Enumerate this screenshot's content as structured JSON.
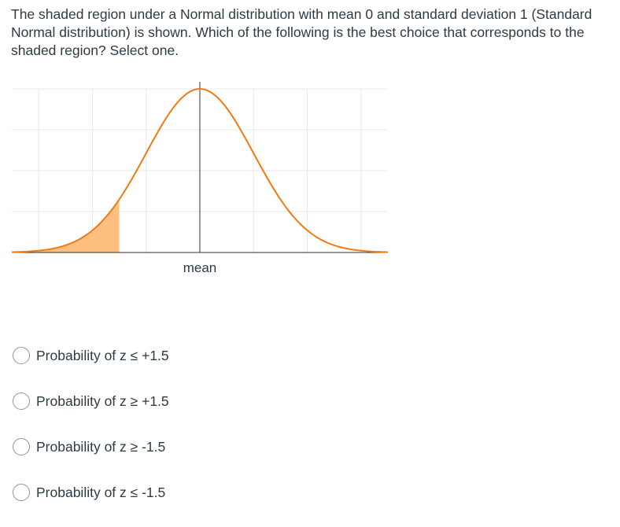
{
  "question": {
    "text": "The shaded region under a Normal distribution with mean 0 and standard deviation 1 (Standard Normal distribution) is shown. Which of the following is the best choice that corresponds to the shaded region? Select one."
  },
  "chart_data": {
    "type": "area",
    "distribution": "standard normal",
    "mean": 0,
    "sd": 1,
    "xlim": [
      -3.5,
      3.5
    ],
    "shaded_region": {
      "from": -3.5,
      "to": -1.5
    },
    "x_label": "mean",
    "grid": true,
    "colors": {
      "curve": "#f07b12",
      "fill": "#ffbf80",
      "grid": "#e8e8e8",
      "axis": "#333333"
    }
  },
  "answers": [
    {
      "label": "Probability of z ≤ +1.5",
      "selected": false
    },
    {
      "label": "Probability of z ≥ +1.5",
      "selected": false
    },
    {
      "label": "Probability of z ≥ -1.5",
      "selected": false
    },
    {
      "label": "Probability of z ≤ -1.5",
      "selected": false
    }
  ]
}
